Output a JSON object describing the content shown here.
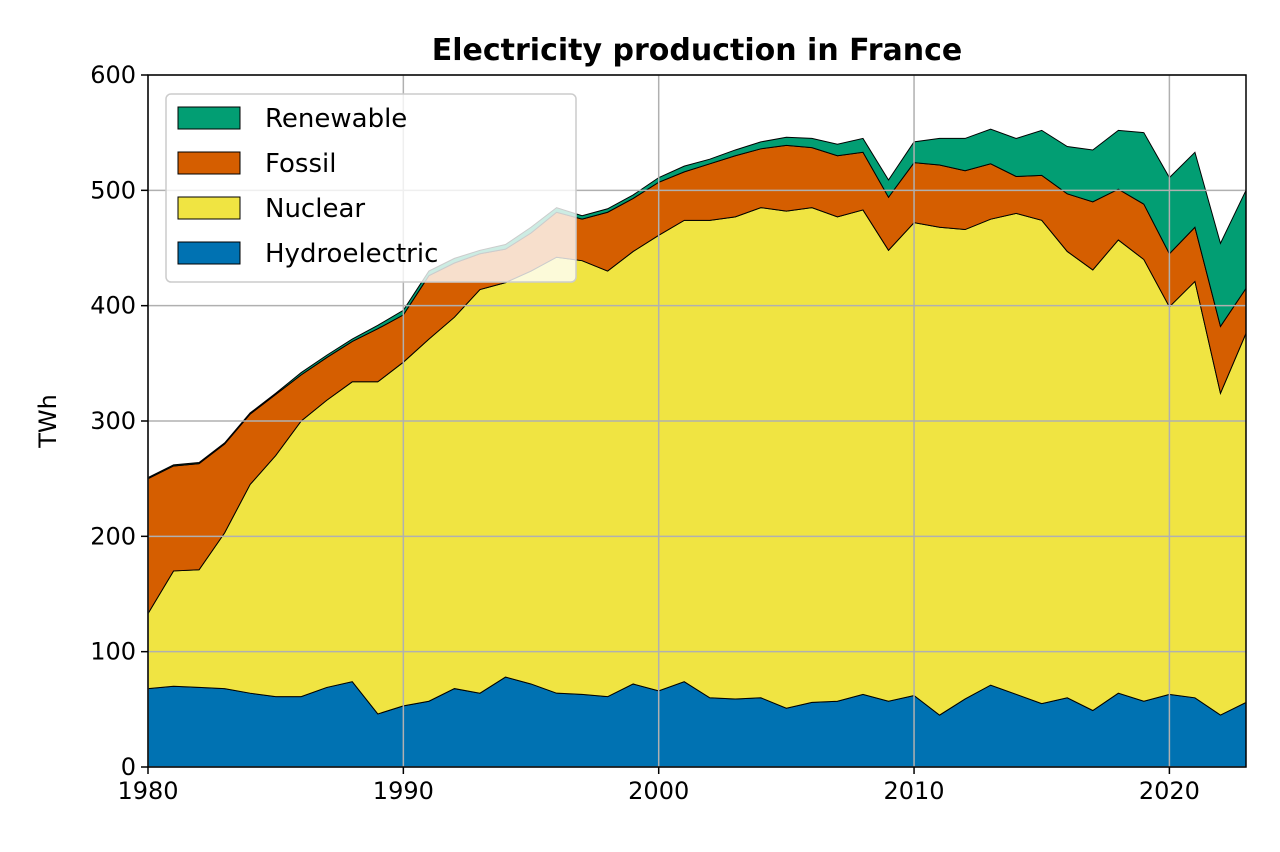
{
  "chart_data": {
    "type": "area",
    "stacked": true,
    "title": "Electricity production in France",
    "xlabel": "",
    "ylabel": "TWh",
    "xlim": [
      1980,
      2023
    ],
    "ylim": [
      0,
      600
    ],
    "xticks": [
      1980,
      1990,
      2000,
      2010,
      2020
    ],
    "yticks": [
      0,
      100,
      200,
      300,
      400,
      500,
      600
    ],
    "grid": true,
    "legend_position": "top-left",
    "x": [
      1980,
      1981,
      1982,
      1983,
      1984,
      1985,
      1986,
      1987,
      1988,
      1989,
      1990,
      1991,
      1992,
      1993,
      1994,
      1995,
      1996,
      1997,
      1998,
      1999,
      2000,
      2001,
      2002,
      2003,
      2004,
      2005,
      2006,
      2007,
      2008,
      2009,
      2010,
      2011,
      2012,
      2013,
      2014,
      2015,
      2016,
      2017,
      2018,
      2019,
      2020,
      2021,
      2022,
      2023
    ],
    "series": [
      {
        "name": "Hydroelectric",
        "color": "#0072b2",
        "values": [
          68,
          70,
          69,
          68,
          64,
          61,
          61,
          69,
          74,
          46,
          53,
          57,
          68,
          64,
          78,
          72,
          64,
          63,
          61,
          72,
          66,
          74,
          60,
          59,
          60,
          51,
          56,
          57,
          63,
          57,
          62,
          45,
          59,
          71,
          63,
          55,
          60,
          49,
          64,
          57,
          63,
          60,
          45,
          56
        ]
      },
      {
        "name": "Nuclear",
        "color": "#f0e442",
        "values": [
          65,
          100,
          102,
          135,
          181,
          209,
          239,
          249,
          260,
          288,
          298,
          314,
          322,
          350,
          342,
          358,
          378,
          376,
          369,
          375,
          395,
          400,
          414,
          418,
          425,
          431,
          429,
          420,
          420,
          391,
          410,
          423,
          407,
          404,
          417,
          419,
          387,
          382,
          393,
          383,
          336,
          361,
          279,
          320
        ]
      },
      {
        "name": "Fossil",
        "color": "#d55e00",
        "values": [
          117,
          91,
          92,
          77,
          61,
          53,
          40,
          37,
          35,
          46,
          41,
          55,
          47,
          31,
          29,
          33,
          39,
          36,
          51,
          46,
          46,
          42,
          49,
          53,
          51,
          57,
          52,
          53,
          50,
          46,
          52,
          54,
          51,
          48,
          32,
          39,
          50,
          59,
          44,
          48,
          46,
          47,
          58,
          39
        ]
      },
      {
        "name": "Renewable",
        "color": "#029e73",
        "values": [
          1,
          1,
          1,
          1,
          1,
          1,
          2,
          2,
          2,
          3,
          4,
          4,
          4,
          3,
          4,
          5,
          4,
          3,
          3,
          3,
          4,
          5,
          4,
          5,
          6,
          7,
          8,
          10,
          12,
          15,
          18,
          23,
          28,
          30,
          33,
          39,
          41,
          45,
          51,
          62,
          66,
          65,
          72,
          85
        ]
      }
    ]
  }
}
